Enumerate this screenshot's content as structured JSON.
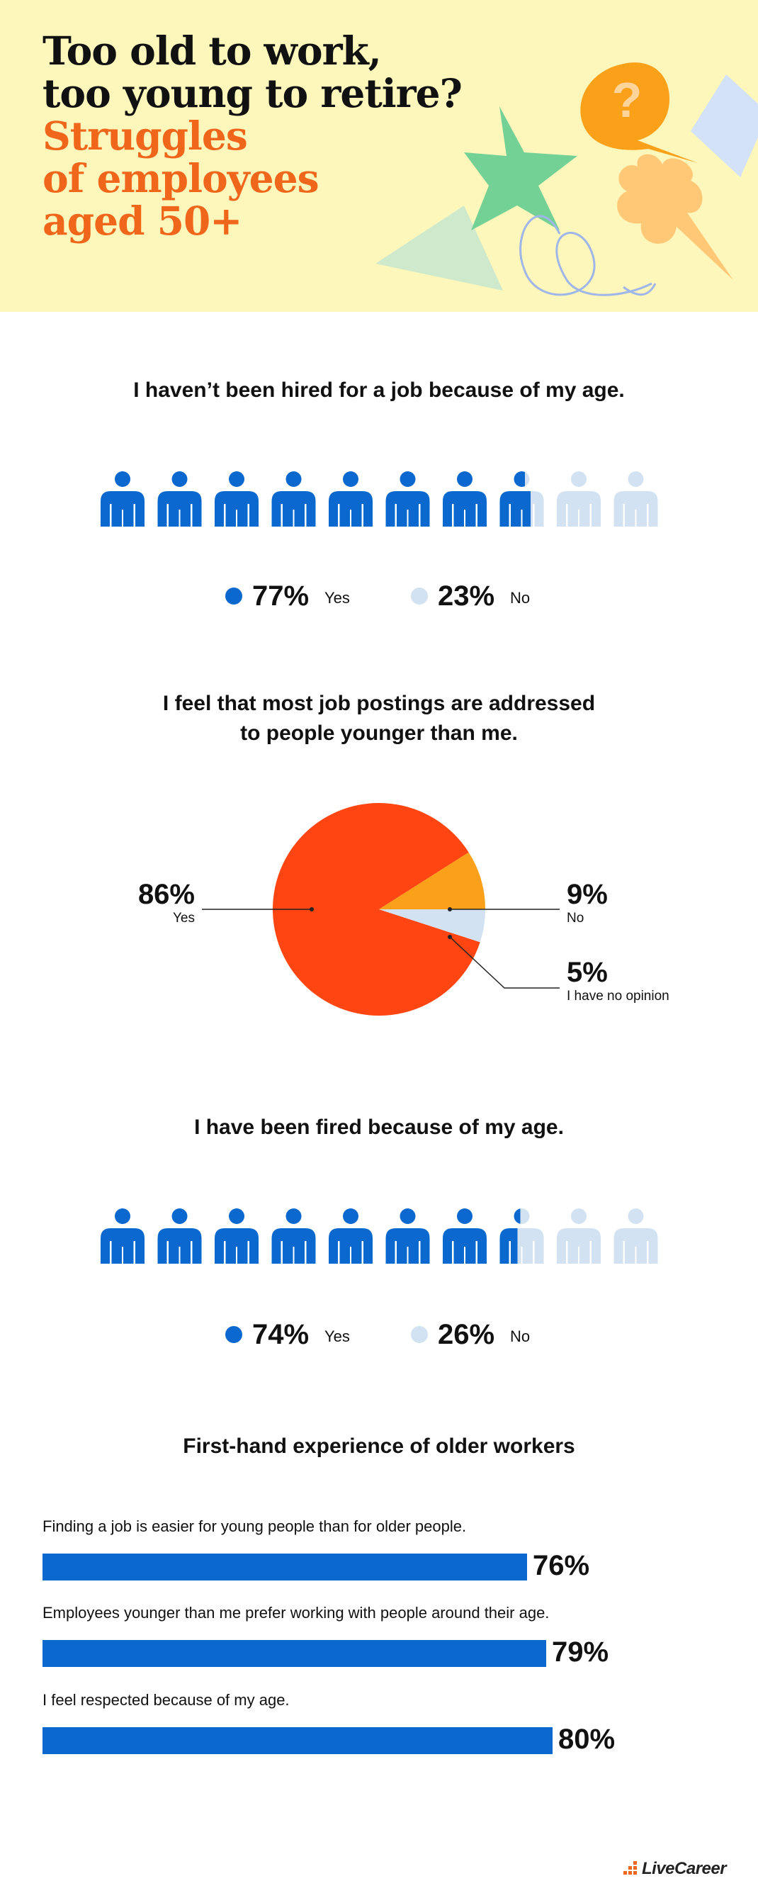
{
  "header": {
    "title_lines": [
      "Too old to work,",
      "too young to retire?"
    ],
    "subtitle_lines": [
      "Struggles",
      "of employees",
      "aged 50+"
    ],
    "question_mark": "?"
  },
  "colors": {
    "header_bg": "#fdf7bb",
    "primary_blue": "#0b68cf",
    "light_blue": "#d3e2f2",
    "pie_red": "#ff4612",
    "pie_orange": "#fba019",
    "title_orange": "#f0661a"
  },
  "icon_name": "person-icon",
  "brand": {
    "name": "LiveCareer"
  },
  "chart_data": [
    {
      "type": "pictogram",
      "title": "I haven’t been hired for a job because of my age.",
      "icon_count": 10,
      "series": [
        {
          "name": "Yes",
          "value": 77,
          "display": "77%"
        },
        {
          "name": "No",
          "value": 23,
          "display": "23%"
        }
      ]
    },
    {
      "type": "pie",
      "title_lines": [
        "I feel that most job postings are addressed",
        "to people younger than me."
      ],
      "slices": [
        {
          "name": "Yes",
          "value": 86,
          "display": "86%"
        },
        {
          "name": "No",
          "value": 9,
          "display": "9%"
        },
        {
          "name": "I have no opinion",
          "value": 5,
          "display": "5%"
        }
      ]
    },
    {
      "type": "pictogram",
      "title": "I have been fired because of my age.",
      "icon_count": 10,
      "series": [
        {
          "name": "Yes",
          "value": 74,
          "display": "74%"
        },
        {
          "name": "No",
          "value": 26,
          "display": "26%"
        }
      ]
    },
    {
      "type": "bar",
      "orientation": "horizontal",
      "title": "First-hand experience of older workers",
      "categories": [
        "Finding a job is easier for young people than for older people.",
        "Employees younger than me prefer working with people around their age.",
        "I feel respected because of my age."
      ],
      "values": [
        76,
        79,
        80
      ],
      "display": [
        "76%",
        "79%",
        "80%"
      ]
    }
  ]
}
